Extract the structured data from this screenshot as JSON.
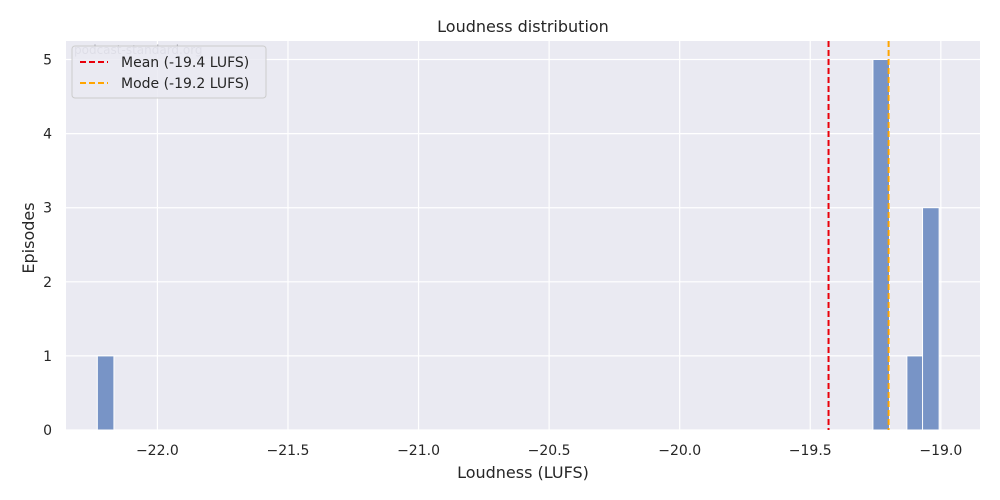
{
  "chart_data": {
    "type": "bar",
    "title": "Loudness distribution",
    "xlabel": "Loudness (LUFS)",
    "ylabel": "Episodes",
    "watermark": "podcast-standard.org",
    "xlim": [
      -22.35,
      -18.85
    ],
    "ylim": [
      0,
      5.25
    ],
    "xticks": [
      -22.0,
      -21.5,
      -21.0,
      -20.5,
      -20.0,
      -19.5,
      -19.0
    ],
    "xtick_labels": [
      "−22.0",
      "−21.5",
      "−21.0",
      "−20.5",
      "−20.0",
      "−19.5",
      "−19.0"
    ],
    "yticks": [
      0,
      1,
      2,
      3,
      4,
      5
    ],
    "ytick_labels": [
      "0",
      "1",
      "2",
      "3",
      "4",
      "5"
    ],
    "bin_width": 0.0635,
    "bars": [
      {
        "x_start": -22.23,
        "value": 1
      },
      {
        "x_start": -19.26,
        "value": 5
      },
      {
        "x_start": -19.13,
        "value": 1
      },
      {
        "x_start": -19.07,
        "value": 3
      }
    ],
    "reference_lines": [
      {
        "label": "Mean (-19.4 LUFS)",
        "x": -19.43,
        "color": "#e8000b"
      },
      {
        "label": "Mode (-19.2 LUFS)",
        "x": -19.2,
        "color": "#ffa500"
      }
    ],
    "grid": true,
    "legend_position": "top-left",
    "bar_color": "#7894c6",
    "background_color": "#eaeaf2"
  }
}
